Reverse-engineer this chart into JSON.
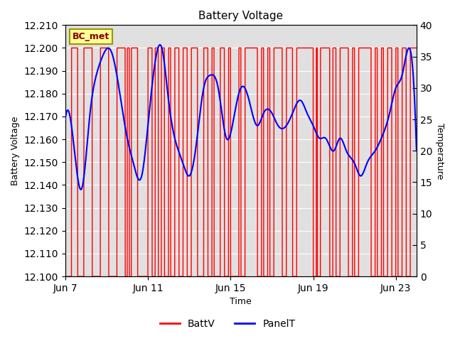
{
  "title": "Battery Voltage",
  "xlabel": "Time",
  "ylabel_left": "Battery Voltage",
  "ylabel_right": "Temperature",
  "ylim_left": [
    12.1,
    12.21
  ],
  "ylim_right": [
    0,
    40
  ],
  "yticks_left": [
    12.1,
    12.11,
    12.12,
    12.13,
    12.14,
    12.15,
    12.16,
    12.17,
    12.18,
    12.19,
    12.2,
    12.21
  ],
  "yticks_right": [
    0,
    5,
    10,
    15,
    20,
    25,
    30,
    35,
    40
  ],
  "background_color": "#ffffff",
  "plot_bg_color": "#e0e0e0",
  "grid_color": "#ffffff",
  "annotation_box_color": "#ffff99",
  "annotation_box_edge": "#999900",
  "annotation_text": "BC_met",
  "annotation_text_color": "#880000",
  "batt_color": "#ff0000",
  "panel_color": "#0000ff",
  "xtick_labels": [
    "Jun 7",
    "Jun 11",
    "Jun 15",
    "Jun 19",
    "Jun 23"
  ],
  "xtick_positions": [
    0,
    4,
    8,
    12,
    16
  ],
  "xlim": [
    0,
    17
  ],
  "legend_batt": "BattV",
  "legend_panel": "PanelT",
  "batt_segments": [
    [
      0.0,
      0.3
    ],
    [
      0.6,
      0.9
    ],
    [
      1.3,
      1.7
    ],
    [
      2.1,
      2.5
    ],
    [
      2.9,
      3.0
    ],
    [
      3.1,
      3.2
    ],
    [
      3.5,
      4.0
    ],
    [
      4.2,
      4.35
    ],
    [
      4.5,
      4.65
    ],
    [
      4.8,
      5.0
    ],
    [
      5.1,
      5.3
    ],
    [
      5.5,
      5.7
    ],
    [
      5.9,
      6.1
    ],
    [
      6.4,
      6.7
    ],
    [
      6.9,
      7.1
    ],
    [
      7.2,
      7.5
    ],
    [
      7.7,
      7.9
    ],
    [
      8.0,
      8.4
    ],
    [
      8.5,
      8.7
    ],
    [
      9.3,
      9.5
    ],
    [
      9.6,
      9.8
    ],
    [
      9.9,
      10.1
    ],
    [
      10.5,
      10.7
    ],
    [
      11.0,
      11.2
    ],
    [
      12.0,
      12.15
    ],
    [
      12.2,
      12.35
    ],
    [
      12.8,
      12.95
    ],
    [
      13.1,
      13.3
    ],
    [
      13.7,
      13.9
    ],
    [
      14.0,
      14.2
    ],
    [
      14.8,
      15.0
    ],
    [
      15.1,
      15.3
    ],
    [
      15.4,
      15.6
    ],
    [
      15.8,
      16.0
    ],
    [
      16.1,
      16.3
    ],
    [
      16.5,
      16.7
    ]
  ],
  "panel_t_x": [
    0,
    0.3,
    0.8,
    1.2,
    1.5,
    1.8,
    2.2,
    2.6,
    3.0,
    3.3,
    3.7,
    4.0,
    4.3,
    4.7,
    5.0,
    5.3,
    5.7,
    6.0,
    6.3,
    6.7,
    7.0,
    7.4,
    7.8,
    8.2,
    8.5,
    8.9,
    9.3,
    9.6,
    10.0,
    10.3,
    10.7,
    11.0,
    11.4,
    11.7,
    12.0,
    12.3,
    12.6,
    13.0,
    13.3,
    13.6,
    14.0,
    14.3,
    14.6,
    15.0,
    15.3,
    15.7,
    16.0,
    16.3,
    16.7,
    17.0
  ],
  "panel_t_y": [
    25,
    24,
    14,
    26,
    32,
    35,
    36,
    30,
    22,
    18,
    16,
    24,
    33,
    36,
    28,
    22,
    18,
    16,
    20,
    30,
    32,
    30,
    22,
    26,
    30,
    28,
    24,
    26,
    26,
    24,
    24,
    26,
    28,
    26,
    24,
    22,
    22,
    20,
    22,
    20,
    18,
    16,
    18,
    20,
    22,
    26,
    30,
    32,
    36,
    20
  ]
}
